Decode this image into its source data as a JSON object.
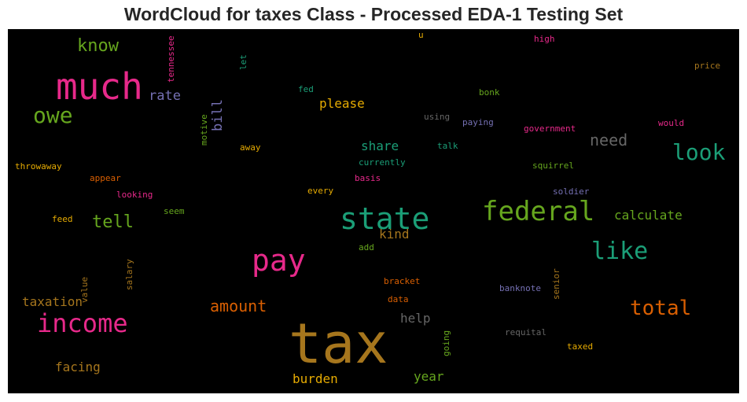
{
  "title": "WordCloud for taxes Class - Processed EDA-1 Testing Set",
  "colors": {
    "background": "#000000",
    "pink": "#e7298a",
    "green": "#66a61e",
    "teal": "#1b9e77",
    "orange": "#d95f02",
    "gold": "#e6ab02",
    "brown": "#a6761d",
    "purple": "#7570b3",
    "gray": "#666666"
  },
  "words": [
    "tax",
    "much",
    "state",
    "federal",
    "pay",
    "income",
    "owe",
    "look",
    "like",
    "total",
    "know",
    "tell",
    "amount",
    "please",
    "rate",
    "bill",
    "share",
    "need",
    "calculate",
    "kind",
    "taxation",
    "help",
    "facing",
    "burden",
    "year",
    "high",
    "price",
    "bonk",
    "paying",
    "government",
    "would",
    "fed",
    "using",
    "talk",
    "away",
    "motive",
    "throwaway",
    "currently",
    "squirrel",
    "appear",
    "basis",
    "every",
    "soldier",
    "looking",
    "seem",
    "feed",
    "add",
    "salary",
    "value",
    "bracket",
    "banknote",
    "senior",
    "data",
    "requital",
    "going",
    "taxed",
    "tennessee",
    "let",
    "u"
  ]
}
